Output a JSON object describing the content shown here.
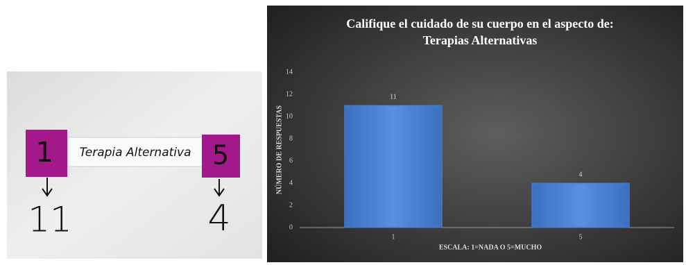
{
  "photo": {
    "left_card": "1",
    "strip": "Terapia Alternativa",
    "right_card": "5",
    "left_count": "11",
    "right_count": "4"
  },
  "chart_data": {
    "type": "bar",
    "title": [
      "Califique el cuidado de su cuerpo en el aspecto de:",
      "Terapias Alternativas"
    ],
    "y_label": "NÚMERO DE RESPUESTAS",
    "x_label": "ESCALA: 1=NADA O 5=MUCHO",
    "categories": [
      "1",
      "5"
    ],
    "values": [
      11,
      4
    ],
    "color": "#4a7fd0",
    "ylim": [
      0,
      14
    ],
    "yticks": [
      0,
      2,
      4,
      6,
      8,
      10,
      12,
      14
    ],
    "grid": false
  }
}
